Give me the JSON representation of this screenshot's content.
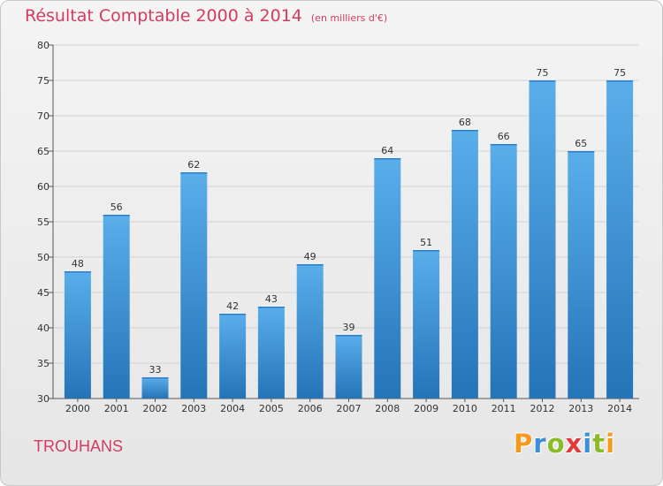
{
  "chart_data": {
    "type": "bar",
    "title": "Résultat Comptable 2000 à 2014",
    "subtitle": "(en milliers d'€)",
    "categories": [
      "2000",
      "2001",
      "2002",
      "2003",
      "2004",
      "2005",
      "2006",
      "2007",
      "2008",
      "2009",
      "2010",
      "2011",
      "2012",
      "2013",
      "2014"
    ],
    "values": [
      48,
      56,
      33,
      62,
      42,
      43,
      49,
      39,
      64,
      51,
      68,
      66,
      75,
      65,
      75
    ],
    "ylim": [
      30,
      80
    ],
    "yticks": [
      30,
      35,
      40,
      45,
      50,
      55,
      60,
      65,
      70,
      75,
      80
    ],
    "xlabel": "",
    "ylabel": "",
    "grid": true,
    "bar_color": "#3d95d9"
  },
  "commune": "TROUHANS",
  "logo": {
    "text": "Proxiti",
    "letters": [
      "P",
      "r",
      "o",
      "x",
      "i",
      "t",
      "i"
    ],
    "colors": [
      "#f39a1f",
      "#3c8fd6",
      "#8cbb2a",
      "#e23a3a",
      "#3c8fd6",
      "#8cbb2a",
      "#f39a1f"
    ]
  },
  "colors": {
    "title": "#d43b62",
    "axis": "#333333"
  }
}
